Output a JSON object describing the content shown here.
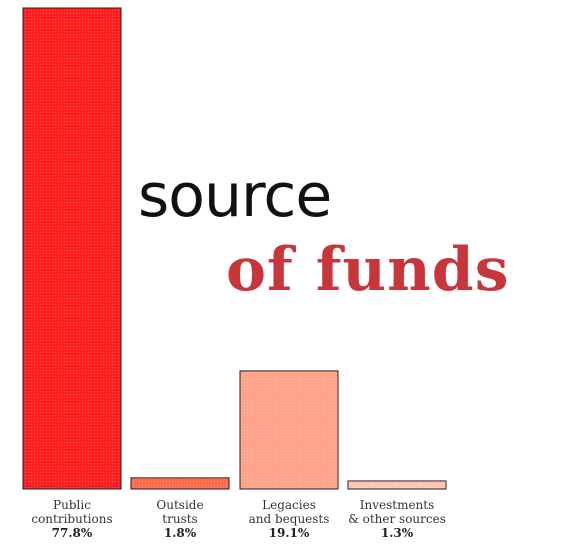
{
  "title": {
    "line1": "source",
    "line2": "of funds"
  },
  "colors": {
    "bar_public": "#ff1e1e",
    "bar_outside": "#ff6a4a",
    "bar_legacies": "#ffa287",
    "bar_investments": "#ffc7b3",
    "outline": "#2a1a1a",
    "title_accent": "#c8353a"
  },
  "chart_data": {
    "type": "bar",
    "categories": [
      "Public contributions",
      "Outside trusts",
      "Legacies and bequests",
      "Investments & other sources"
    ],
    "category_lines": [
      [
        "Public",
        "contributions"
      ],
      [
        "Outside",
        "trusts"
      ],
      [
        "Legacies",
        "and bequests"
      ],
      [
        "Investments",
        "& other sources"
      ]
    ],
    "values": [
      77.8,
      1.8,
      19.1,
      1.3
    ],
    "value_labels": [
      "77.8%",
      "1.8%",
      "19.1%",
      "1.3%"
    ],
    "ylim": [
      0,
      77.8
    ],
    "grid": false,
    "legend": "none"
  }
}
